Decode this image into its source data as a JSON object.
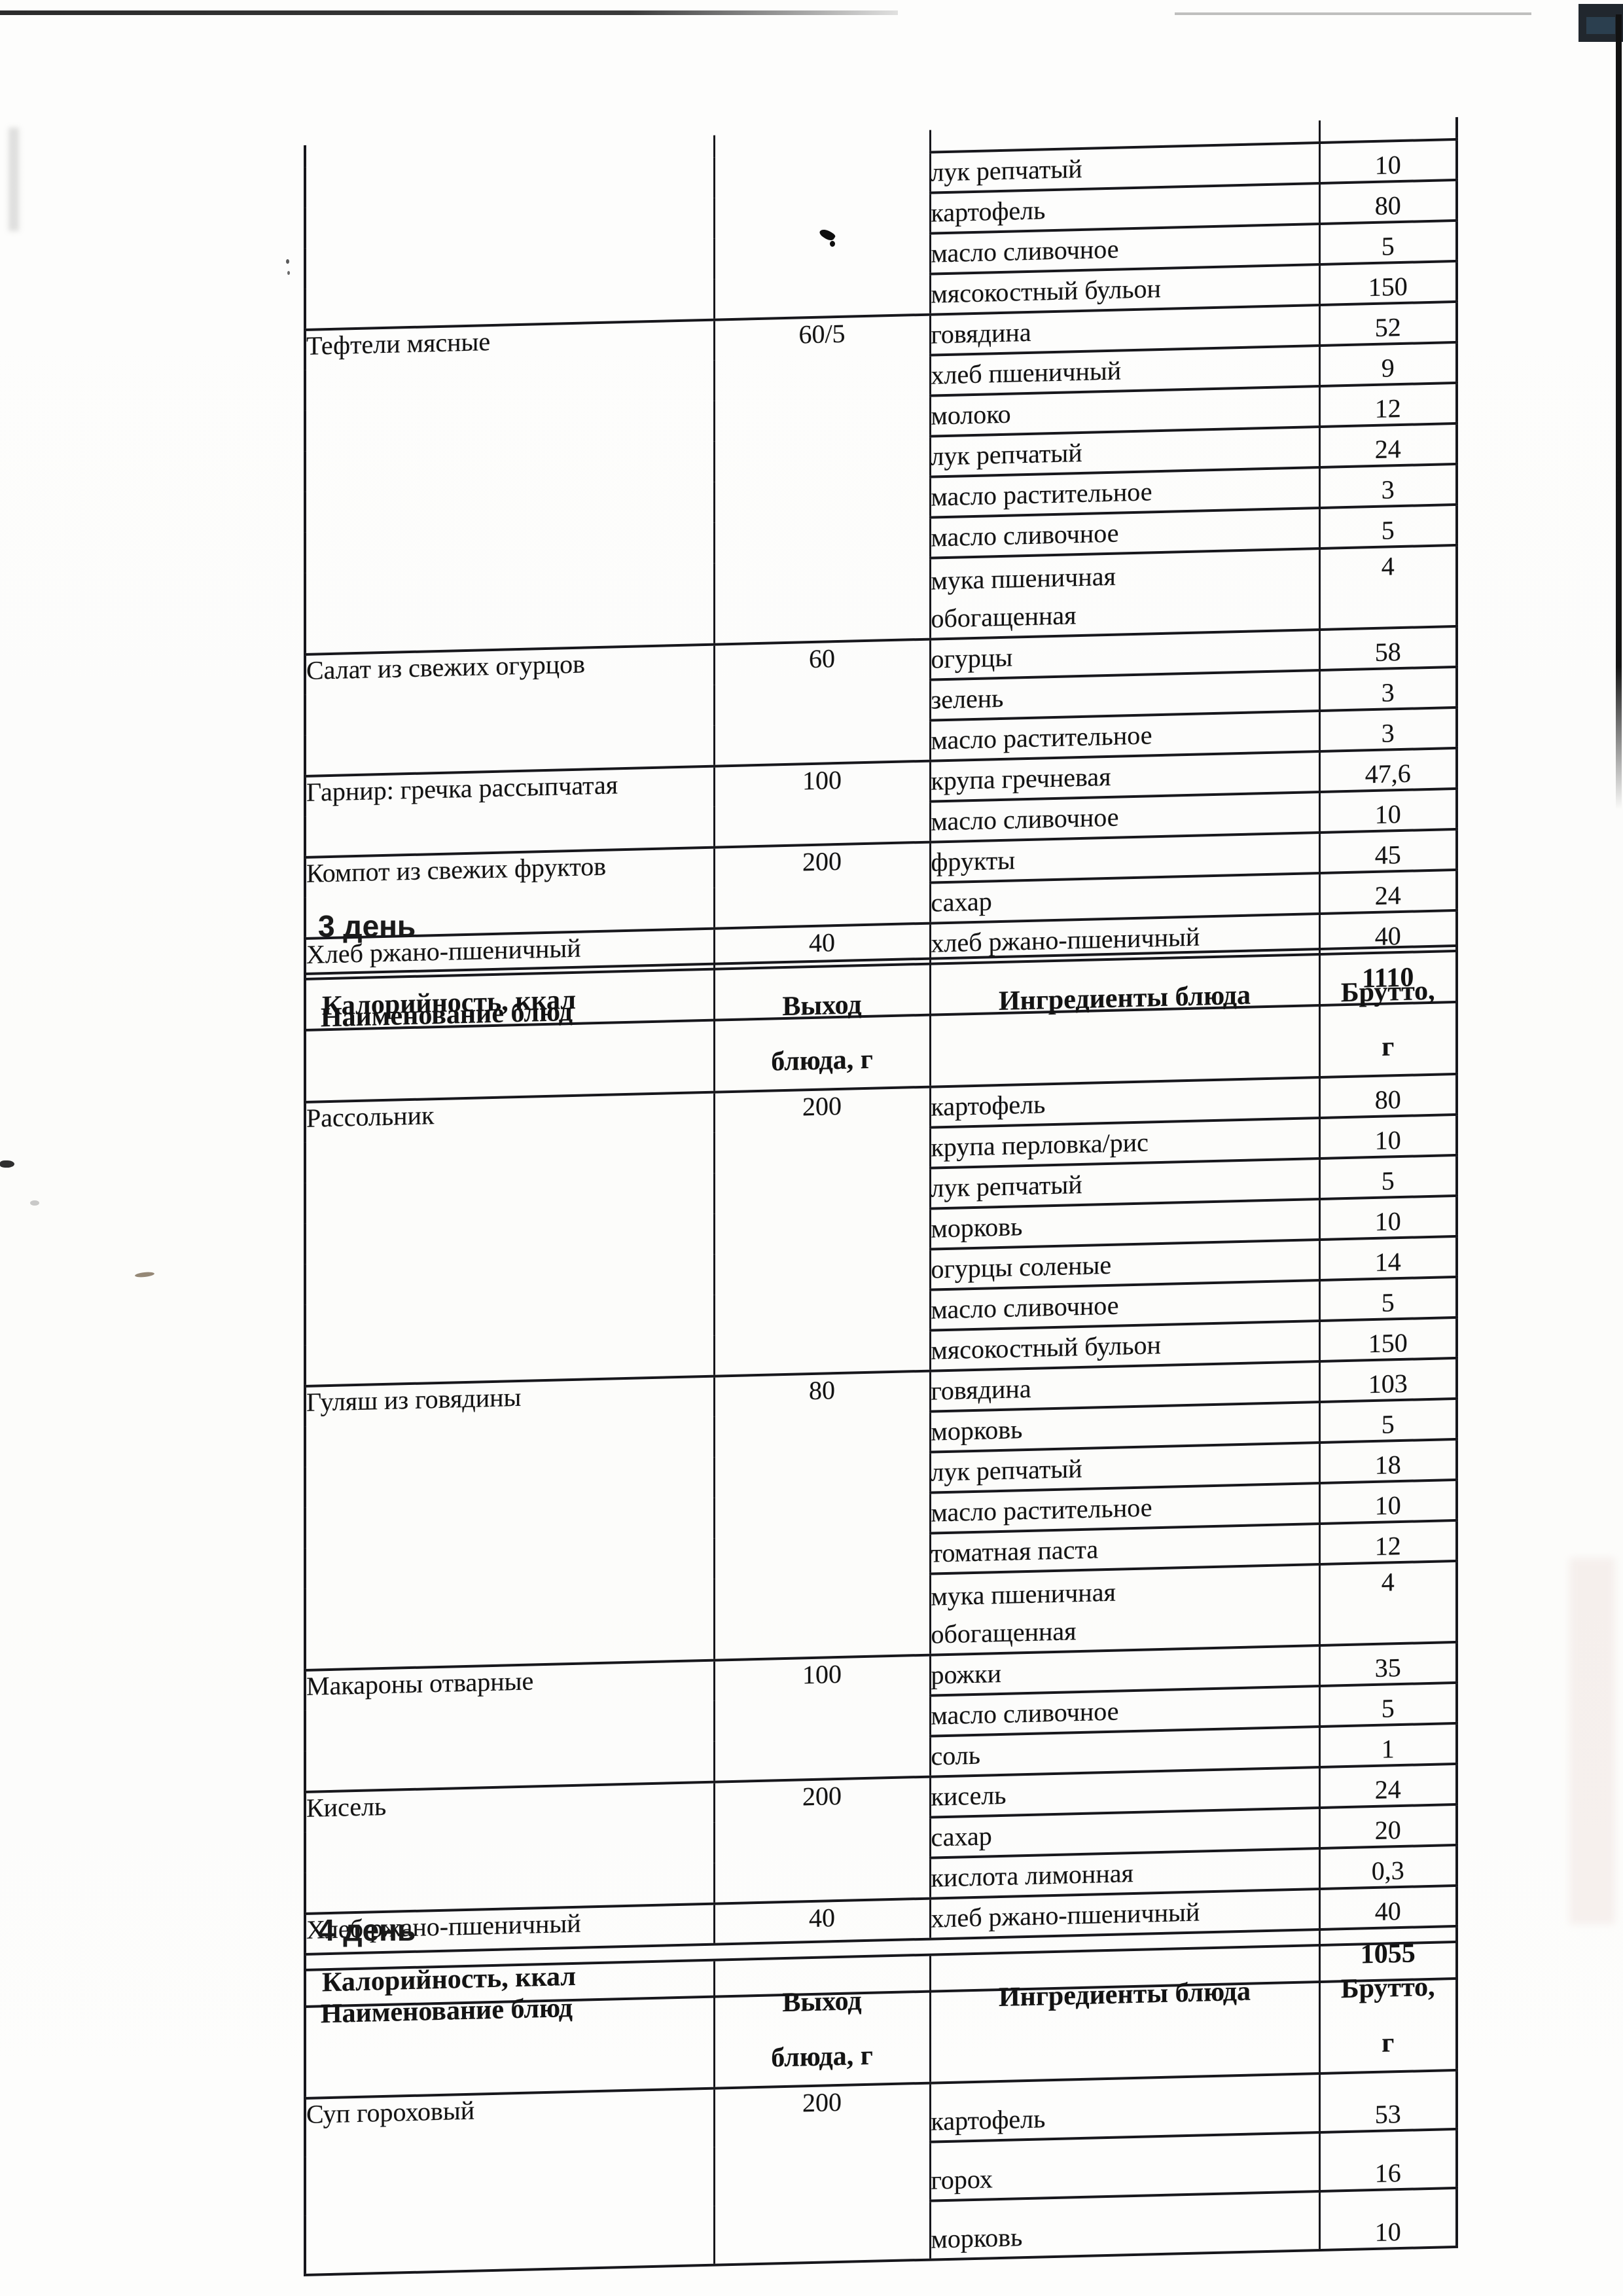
{
  "document": {
    "type": "scanned menu page",
    "language": "ru"
  },
  "columns": {
    "dish": "Наименование блюд",
    "output_lines": "Выход\nблюда, г",
    "ingredients": "Ингредиенты блюда",
    "brutto_lines": "Брутто,\nг"
  },
  "tables": [
    {
      "day_label": "",
      "has_header": false,
      "cut_top": true,
      "groups": [
        {
          "dish": "",
          "output": "",
          "rows": [
            [
              "лук репчатый",
              "10"
            ],
            [
              "картофель",
              "80"
            ],
            [
              "масло сливочное",
              "5"
            ],
            [
              "мясокостный бульон",
              "150"
            ]
          ]
        },
        {
          "dish": "Тефтели мясные",
          "output": "60/5",
          "rows": [
            [
              "говядина",
              "52"
            ],
            [
              "хлеб пшеничный",
              "9"
            ],
            [
              "молоко",
              "12"
            ],
            [
              "лук репчатый",
              "24"
            ],
            [
              "масло растительное",
              "3"
            ],
            [
              "масло сливочное",
              "5"
            ],
            [
              "мука пшеничная\nобогащенная",
              "4"
            ]
          ]
        },
        {
          "dish": "Салат из свежих огурцов",
          "output": "60",
          "rows": [
            [
              "огурцы",
              "58"
            ],
            [
              "зелень",
              "3"
            ],
            [
              "масло растительное",
              "3"
            ]
          ]
        },
        {
          "dish": "Гарнир: гречка рассыпчатая",
          "output": "100",
          "rows": [
            [
              "крупа гречневая",
              "47,6"
            ],
            [
              "масло сливочное",
              "10"
            ]
          ]
        },
        {
          "dish": "Компот из свежих фруктов",
          "output": "200",
          "rows": [
            [
              "фрукты",
              "45"
            ],
            [
              "сахар",
              "24"
            ]
          ]
        },
        {
          "dish": "Хлеб ржано-пшеничный",
          "output": "40",
          "rows": [
            [
              "хлеб ржано-пшеничный",
              "40"
            ]
          ]
        }
      ],
      "footer": {
        "label": "Калорийность, ккал",
        "value": "1110"
      }
    },
    {
      "day_label": "3 день",
      "has_header": true,
      "cut_top": false,
      "groups": [
        {
          "dish": "Рассольник",
          "output": "200",
          "rows": [
            [
              "картофель",
              "80"
            ],
            [
              "крупа перловка/рис",
              "10"
            ],
            [
              "лук репчатый",
              "5"
            ],
            [
              "морковь",
              "10"
            ],
            [
              "огурцы соленые",
              "14"
            ],
            [
              "масло сливочное",
              "5"
            ],
            [
              "мясокостный бульон",
              "150"
            ]
          ]
        },
        {
          "dish": "Гуляш из говядины",
          "output": "80",
          "rows": [
            [
              "говядина",
              "103"
            ],
            [
              "морковь",
              "5"
            ],
            [
              "лук репчатый",
              "18"
            ],
            [
              "масло растительное",
              "10"
            ],
            [
              "томатная паста",
              "12"
            ],
            [
              "мука пшеничная\nобогащенная",
              "4"
            ]
          ]
        },
        {
          "dish": "Макароны отварные",
          "output": "100",
          "rows": [
            [
              "рожки",
              "35"
            ],
            [
              "масло сливочное",
              "5"
            ],
            [
              "соль",
              "1"
            ]
          ]
        },
        {
          "dish": "Кисель",
          "output": "200",
          "rows": [
            [
              "кисель",
              "24"
            ],
            [
              "сахар",
              "20"
            ],
            [
              "кислота лимонная",
              "0,3"
            ]
          ]
        },
        {
          "dish": "Хлеб ржано-пшеничный",
          "output": "40",
          "rows": [
            [
              "хлеб ржано-пшеничный",
              "40"
            ]
          ]
        }
      ],
      "footer": {
        "label": "Калорийность, ккал",
        "value": "1055"
      }
    },
    {
      "day_label": "4 день",
      "has_header": true,
      "cut_top": false,
      "groups": [
        {
          "dish": "Суп гороховый",
          "output": "200",
          "rows": [
            [
              "картофель",
              "53"
            ],
            [
              "горох",
              "16"
            ],
            [
              "морковь",
              "10"
            ]
          ]
        }
      ],
      "footer": null
    }
  ]
}
